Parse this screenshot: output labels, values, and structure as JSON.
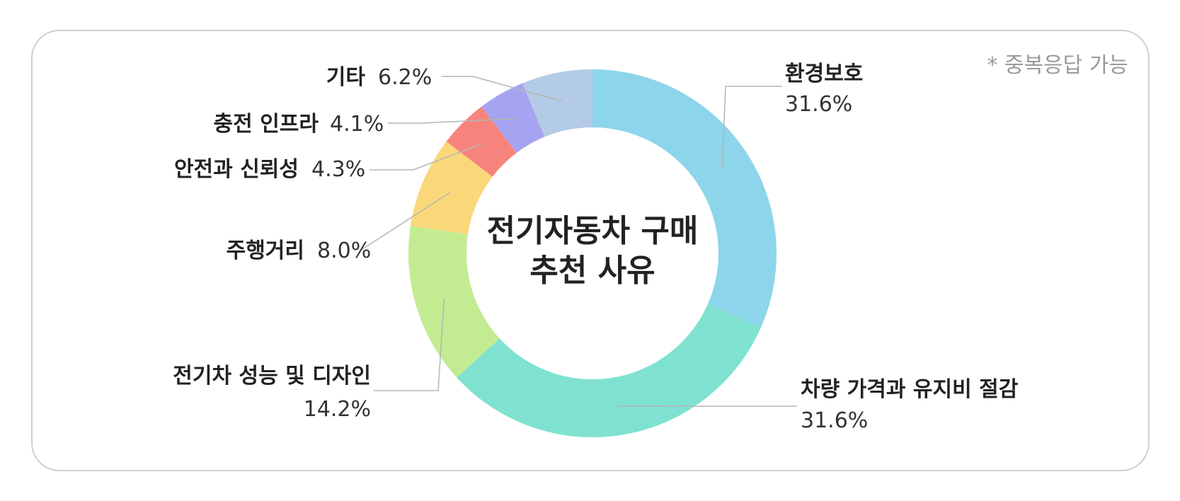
{
  "note": "* 중복응답 가능",
  "chart_data": {
    "type": "pie",
    "subtype": "donut",
    "center_label": [
      "전기자동차 구매",
      "추천 사유"
    ],
    "slices": [
      {
        "label": "환경보호",
        "value": 31.6,
        "display": "31.6%",
        "color": "#8dd5ea"
      },
      {
        "label": "차량 가격과 유지비 절감",
        "value": 31.6,
        "display": "31.6%",
        "color": "#7fe2d0"
      },
      {
        "label": "전기차 성능 및 디자인",
        "value": 14.2,
        "display": "14.2%",
        "color": "#c3ec92"
      },
      {
        "label": "주행거리",
        "value": 8.0,
        "display": "8.0%",
        "color": "#fad87a"
      },
      {
        "label": "안전과 신뢰성",
        "value": 4.3,
        "display": "4.3%",
        "color": "#f7847c"
      },
      {
        "label": "충전 인프라",
        "value": 4.1,
        "display": "4.1%",
        "color": "#a6a3f0"
      },
      {
        "label": "기타",
        "value": 6.2,
        "display": "6.2%",
        "color": "#b3cbe4"
      }
    ]
  }
}
